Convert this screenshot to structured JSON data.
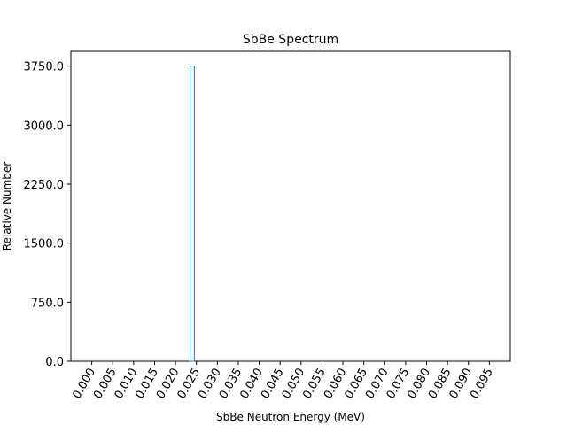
{
  "chart_data": {
    "type": "bar",
    "title": "SbBe Spectrum",
    "xlabel": "SbBe Neutron Energy (MeV)",
    "ylabel": "Relative Number",
    "xlim": [
      -0.005,
      0.1
    ],
    "ylim": [
      0,
      3937.5
    ],
    "x_ticks": [
      "0.000",
      "0.005",
      "0.010",
      "0.015",
      "0.020",
      "0.025",
      "0.030",
      "0.035",
      "0.040",
      "0.045",
      "0.050",
      "0.055",
      "0.060",
      "0.065",
      "0.070",
      "0.075",
      "0.080",
      "0.085",
      "0.090",
      "0.095"
    ],
    "y_ticks": [
      "0.0",
      "750.0",
      "1500.0",
      "2250.0",
      "3000.0",
      "3750.0"
    ],
    "bars": [
      {
        "x_start": 0.0235,
        "x_end": 0.0245,
        "value": 3750
      }
    ],
    "grid": false,
    "legend": false,
    "colors": {
      "bar_edge": "#1f77b4",
      "bar_fill": "#ffffff",
      "axis": "#000000"
    }
  }
}
